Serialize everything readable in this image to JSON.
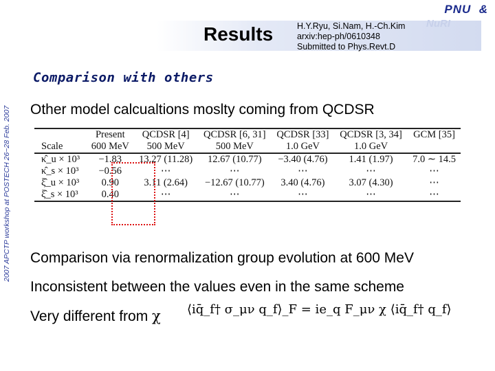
{
  "header": {
    "pnu": "PNU  &",
    "nuri": "NuRI",
    "title": "Results",
    "citation_line1": "H.Y.Ryu, Si.Nam, H.-Ch.Kim",
    "citation_line2": "arxiv:hep-ph/0610348",
    "citation_line3": "Submitted to Phys.Revt.D"
  },
  "footer_vertical": "2007 APCTP workshop at POSTECH   26~28 Feb. 2007",
  "section_heading": "Comparison with others",
  "bullets": {
    "b1": "Other model calcualtions moslty coming from QCDSR",
    "b2": "Comparison via renormalization group evolution at 600 MeV",
    "b3": "Inconsistent between the values even in the same scheme",
    "b4_prefix": "Very different from",
    "b4_symbol": "χ"
  },
  "formula": "⟨iq̄_f† σ_μν q_f⟩_F = ie_q F_μν χ ⟨iq̄_f† q_f⟩",
  "table": {
    "header_row1": [
      "",
      "Present",
      "QCDSR [4]",
      "QCDSR [6, 31]",
      "QCDSR [33]",
      "QCDSR [3, 34]",
      "GCM [35]"
    ],
    "header_row2": [
      "Scale",
      "600 MeV",
      "500 MeV",
      "500 MeV",
      "1.0 GeV",
      "1.0 GeV",
      ""
    ],
    "rows": [
      [
        "κ̂_u × 10³",
        "−1.83",
        "13.27 (11.28)",
        "12.67 (10.77)",
        "−3.40 (4.76)",
        "1.41 (1.97)",
        "7.0 ∼ 14.5"
      ],
      [
        "κ̂_s × 10³",
        "−0.56",
        "⋯",
        "⋯",
        "⋯",
        "⋯",
        "⋯"
      ],
      [
        "ξ̂_u × 10³",
        "0.90",
        "3.11 (2.64)",
        "−12.67 (10.77)",
        "3.40 (4.76)",
        "3.07 (4.30)",
        "⋯"
      ],
      [
        "ξ̂_s × 10³",
        "0.40",
        "⋯",
        "⋯",
        "⋯",
        "⋯",
        "⋯"
      ]
    ]
  }
}
